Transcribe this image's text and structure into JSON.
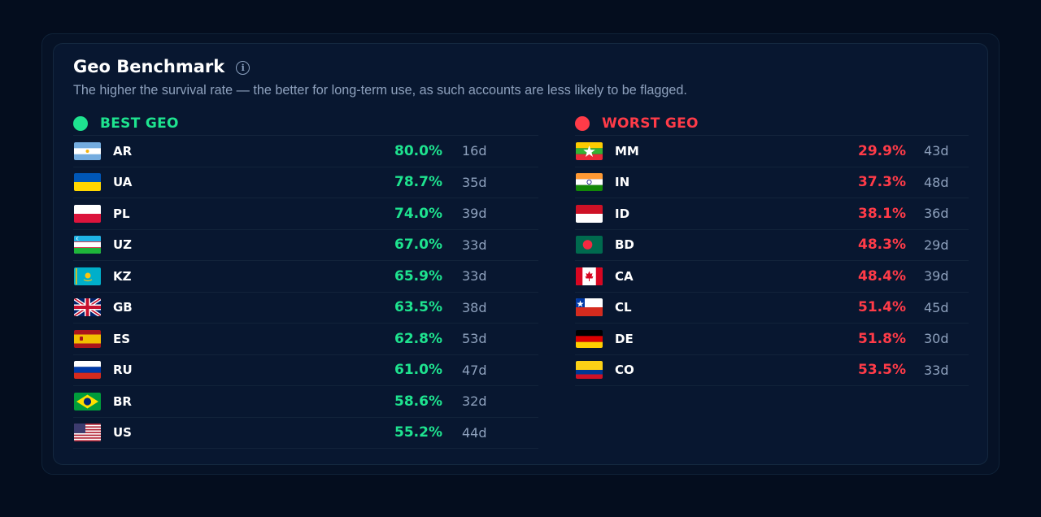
{
  "header": {
    "title": "Geo Benchmark",
    "subtitle": "The higher the survival rate — the better for long-term use, as such accounts are less likely to be flagged."
  },
  "best": {
    "label": "BEST GEO",
    "color": "#1ee38f",
    "rows": [
      {
        "code": "AR",
        "rate": "80.0%",
        "days": "16d",
        "flag": "argentina-flag"
      },
      {
        "code": "UA",
        "rate": "78.7%",
        "days": "35d",
        "flag": "ukraine-flag"
      },
      {
        "code": "PL",
        "rate": "74.0%",
        "days": "39d",
        "flag": "poland-flag"
      },
      {
        "code": "UZ",
        "rate": "67.0%",
        "days": "33d",
        "flag": "uzbekistan-flag"
      },
      {
        "code": "KZ",
        "rate": "65.9%",
        "days": "33d",
        "flag": "kazakhstan-flag"
      },
      {
        "code": "GB",
        "rate": "63.5%",
        "days": "38d",
        "flag": "uk-flag"
      },
      {
        "code": "ES",
        "rate": "62.8%",
        "days": "53d",
        "flag": "spain-flag"
      },
      {
        "code": "RU",
        "rate": "61.0%",
        "days": "47d",
        "flag": "russia-flag"
      },
      {
        "code": "BR",
        "rate": "58.6%",
        "days": "32d",
        "flag": "brazil-flag"
      },
      {
        "code": "US",
        "rate": "55.2%",
        "days": "44d",
        "flag": "usa-flag"
      }
    ]
  },
  "worst": {
    "label": "WORST GEO",
    "color": "#ff3b48",
    "rows": [
      {
        "code": "MM",
        "rate": "29.9%",
        "days": "43d",
        "flag": "myanmar-flag"
      },
      {
        "code": "IN",
        "rate": "37.3%",
        "days": "48d",
        "flag": "india-flag"
      },
      {
        "code": "ID",
        "rate": "38.1%",
        "days": "36d",
        "flag": "indonesia-flag"
      },
      {
        "code": "BD",
        "rate": "48.3%",
        "days": "29d",
        "flag": "bangladesh-flag"
      },
      {
        "code": "CA",
        "rate": "48.4%",
        "days": "39d",
        "flag": "canada-flag"
      },
      {
        "code": "CL",
        "rate": "51.4%",
        "days": "45d",
        "flag": "chile-flag"
      },
      {
        "code": "DE",
        "rate": "51.8%",
        "days": "30d",
        "flag": "germany-flag"
      },
      {
        "code": "CO",
        "rate": "53.5%",
        "days": "33d",
        "flag": "colombia-flag"
      }
    ]
  }
}
